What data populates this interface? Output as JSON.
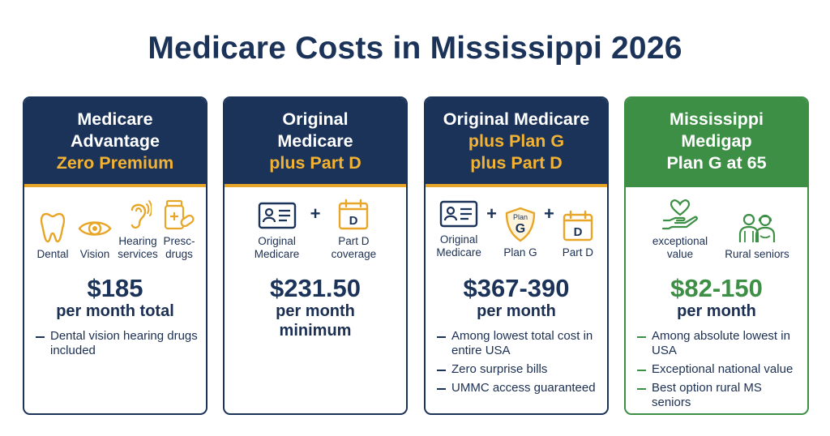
{
  "title": "Medicare Costs in Mississippi 2026",
  "colors": {
    "navy": "#1b3359",
    "gold": "#f2b233",
    "green": "#3e8f46"
  },
  "cards": [
    {
      "head": [
        "Medicare",
        "Advantage",
        "Zero Premium"
      ],
      "icons": [
        {
          "icon": "tooth-icon",
          "label": "Dental"
        },
        {
          "icon": "eye-icon",
          "label": "Vision"
        },
        {
          "icon": "ear-icon",
          "label": "Hearing services"
        },
        {
          "icon": "pill-bottle-icon",
          "label": "Presc- drugs"
        }
      ],
      "price": "$185",
      "per": [
        "per month total"
      ],
      "bullets": [
        "Dental vision hearing drugs included"
      ]
    },
    {
      "head": [
        "Original",
        "Medicare",
        "plus Part D"
      ],
      "icons": [
        {
          "icon": "id-card-icon",
          "label": "Original Medicare"
        },
        {
          "icon": "calendar-d-icon",
          "label": "Part D coverage"
        }
      ],
      "price": "$231.50",
      "per": [
        "per month",
        "minimum"
      ],
      "bullets": []
    },
    {
      "head": [
        "Original Medicare",
        "plus Plan G",
        "plus Part D"
      ],
      "icons": [
        {
          "icon": "id-card-icon",
          "label": "Original Medicare"
        },
        {
          "icon": "plan-g-shield-icon",
          "label": "Plan G"
        },
        {
          "icon": "calendar-d-icon",
          "label": "Part D"
        }
      ],
      "shield_text": "Plan G",
      "calendar_letter": "D",
      "price": "$367-390",
      "per": [
        "per month"
      ],
      "bullets": [
        "Among lowest total cost in entire USA",
        "Zero surprise bills",
        "UMMC access guaranteed"
      ]
    },
    {
      "head": [
        "Mississippi",
        "Medigap",
        "Plan G at 65"
      ],
      "icons": [
        {
          "icon": "heart-hand-icon",
          "label": "exceptional value"
        },
        {
          "icon": "seniors-icon",
          "label": "Rural seniors"
        }
      ],
      "price": "$82-150",
      "per": [
        "per month"
      ],
      "bullets": [
        "Among absolute lowest in USA",
        "Exceptional national value",
        "Best option rural MS seniors"
      ]
    }
  ]
}
